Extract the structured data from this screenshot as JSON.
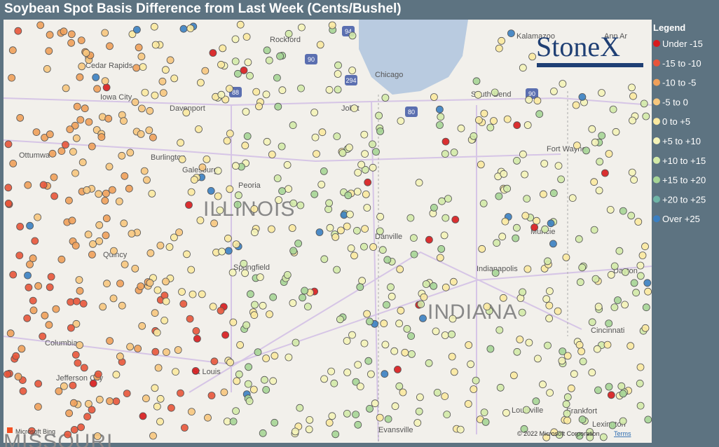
{
  "header": {
    "title": "Soybean Spot Basis Difference from Last Week (Cents/Bushel)"
  },
  "legend": {
    "title": "Legend",
    "items": [
      {
        "label": "Under -15",
        "color": "#d7191c"
      },
      {
        "label": "-15 to -10",
        "color": "#e8553a"
      },
      {
        "label": "-10 to -5",
        "color": "#f0a05a"
      },
      {
        "label": "-5 to 0",
        "color": "#f7c77e"
      },
      {
        "label": "0 to +5",
        "color": "#fbe9a0"
      },
      {
        "label": "+5 to +10",
        "color": "#f4f3b8"
      },
      {
        "label": "+10 to +15",
        "color": "#d3eaa8"
      },
      {
        "label": "+15 to +20",
        "color": "#a6d596"
      },
      {
        "label": "+20 to +25",
        "color": "#6fb5a6"
      },
      {
        "label": "Over +25",
        "color": "#3a7fc2"
      }
    ]
  },
  "logo": "StoneX",
  "map": {
    "states": [
      "ILLINOIS",
      "INDIANA",
      "MISSOURI"
    ],
    "cities": [
      "Rockford",
      "Chicago",
      "Cedar Rapids",
      "Iowa City",
      "Davenport",
      "Ottumwa",
      "Burlington",
      "Galesburg",
      "Peoria",
      "Quincy",
      "Springfield",
      "Danville",
      "Joliet",
      "South Bend",
      "Kalamazoo",
      "Ann Ar",
      "Fort Wayne",
      "Muncie",
      "Indianapolis",
      "Dayton",
      "Cincinnati",
      "Columbia",
      "Jefferson City",
      "St Louis",
      "Evansville",
      "Louisville",
      "Frankfort",
      "Lexington"
    ],
    "highways": [
      "94",
      "90",
      "88",
      "294",
      "80",
      "90"
    ]
  },
  "footer": {
    "provider": "Microsoft Bing",
    "copyright": "© 2022 Microsoft Corporation",
    "terms": "Terms"
  }
}
